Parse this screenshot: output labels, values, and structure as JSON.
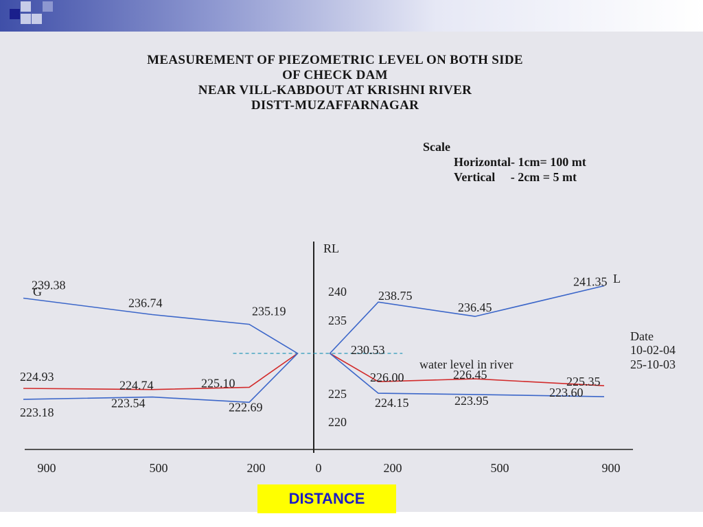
{
  "colors": {
    "accent": "#3f4fa8",
    "blue_line": "#3b66c9",
    "red_line": "#d22a2a",
    "water_line": "#2a9ab8",
    "label_box": "#ffff00",
    "label_text": "#1c1cc4"
  },
  "title": {
    "lines": [
      "MEASUREMENT OF PIEZOMETRIC LEVEL ON BOTH SIDE",
      "OF CHECK DAM",
      "NEAR VILL-KABDOUT AT KRISHNI RIVER",
      "DISTT-MUZAFFARNAGAR"
    ]
  },
  "scale": {
    "heading": "Scale",
    "horizontal": "Horizontal- 1cm= 100 mt",
    "vertical": "Vertical     - 2cm = 5 mt"
  },
  "chart_data": {
    "type": "line",
    "title": "MEASUREMENT OF PIEZOMETRIC LEVEL ON BOTH SIDE OF CHECK DAM",
    "ylabel": "RL",
    "xlabel": "DISTANCE",
    "x_tick_labels": [
      "900",
      "500",
      "200",
      "0",
      "200",
      "500",
      "900"
    ],
    "y_tick_labels": [
      "240",
      "235",
      "225",
      "220"
    ],
    "end_labels": {
      "left": "G",
      "right": "L"
    },
    "legend": {
      "heading": "Date",
      "entries": [
        "10-02-04",
        "25-10-03"
      ]
    },
    "annotation": "water level in river",
    "water_level_label": "230.53",
    "series": [
      {
        "key": "upper-left",
        "color": "blue",
        "points": [
          {
            "x": -900,
            "y": 239.38,
            "label": "239.38"
          },
          {
            "x": -500,
            "y": 236.74,
            "label": "236.74"
          },
          {
            "x": -200,
            "y": 235.19,
            "label": "235.19"
          },
          {
            "x": -50,
            "y": 230.53,
            "label": ""
          }
        ]
      },
      {
        "key": "upper-right",
        "color": "blue",
        "points": [
          {
            "x": 50,
            "y": 230.53,
            "label": ""
          },
          {
            "x": 200,
            "y": 238.75,
            "label": "238.75"
          },
          {
            "x": 500,
            "y": 236.45,
            "label": "236.45"
          },
          {
            "x": 900,
            "y": 241.35,
            "label": "241.35"
          }
        ]
      },
      {
        "key": "lower-left-red",
        "color": "red",
        "points": [
          {
            "x": -900,
            "y": 224.93,
            "label": "224.93"
          },
          {
            "x": -500,
            "y": 224.74,
            "label": "224.74"
          },
          {
            "x": -200,
            "y": 225.1,
            "label": "225.10"
          },
          {
            "x": -50,
            "y": 230.53,
            "label": ""
          }
        ]
      },
      {
        "key": "lower-left-blue",
        "color": "blue",
        "points": [
          {
            "x": -900,
            "y": 223.18,
            "label": "223.18"
          },
          {
            "x": -500,
            "y": 223.54,
            "label": "223.54"
          },
          {
            "x": -200,
            "y": 222.69,
            "label": "222.69"
          },
          {
            "x": -50,
            "y": 230.53,
            "label": ""
          }
        ]
      },
      {
        "key": "lower-right-red",
        "color": "red",
        "points": [
          {
            "x": 50,
            "y": 230.53,
            "label": ""
          },
          {
            "x": 200,
            "y": 226.0,
            "label": "226.00"
          },
          {
            "x": 500,
            "y": 226.45,
            "label": "226.45"
          },
          {
            "x": 900,
            "y": 225.35,
            "label": "225.35"
          }
        ]
      },
      {
        "key": "lower-right-blue",
        "color": "blue",
        "points": [
          {
            "x": 50,
            "y": 230.53,
            "label": ""
          },
          {
            "x": 200,
            "y": 224.15,
            "label": "224.15"
          },
          {
            "x": 500,
            "y": 223.95,
            "label": "223.95"
          },
          {
            "x": 900,
            "y": 223.6,
            "label": "223.60"
          }
        ]
      }
    ]
  },
  "footer": {
    "distance_label": "DISTANCE"
  }
}
